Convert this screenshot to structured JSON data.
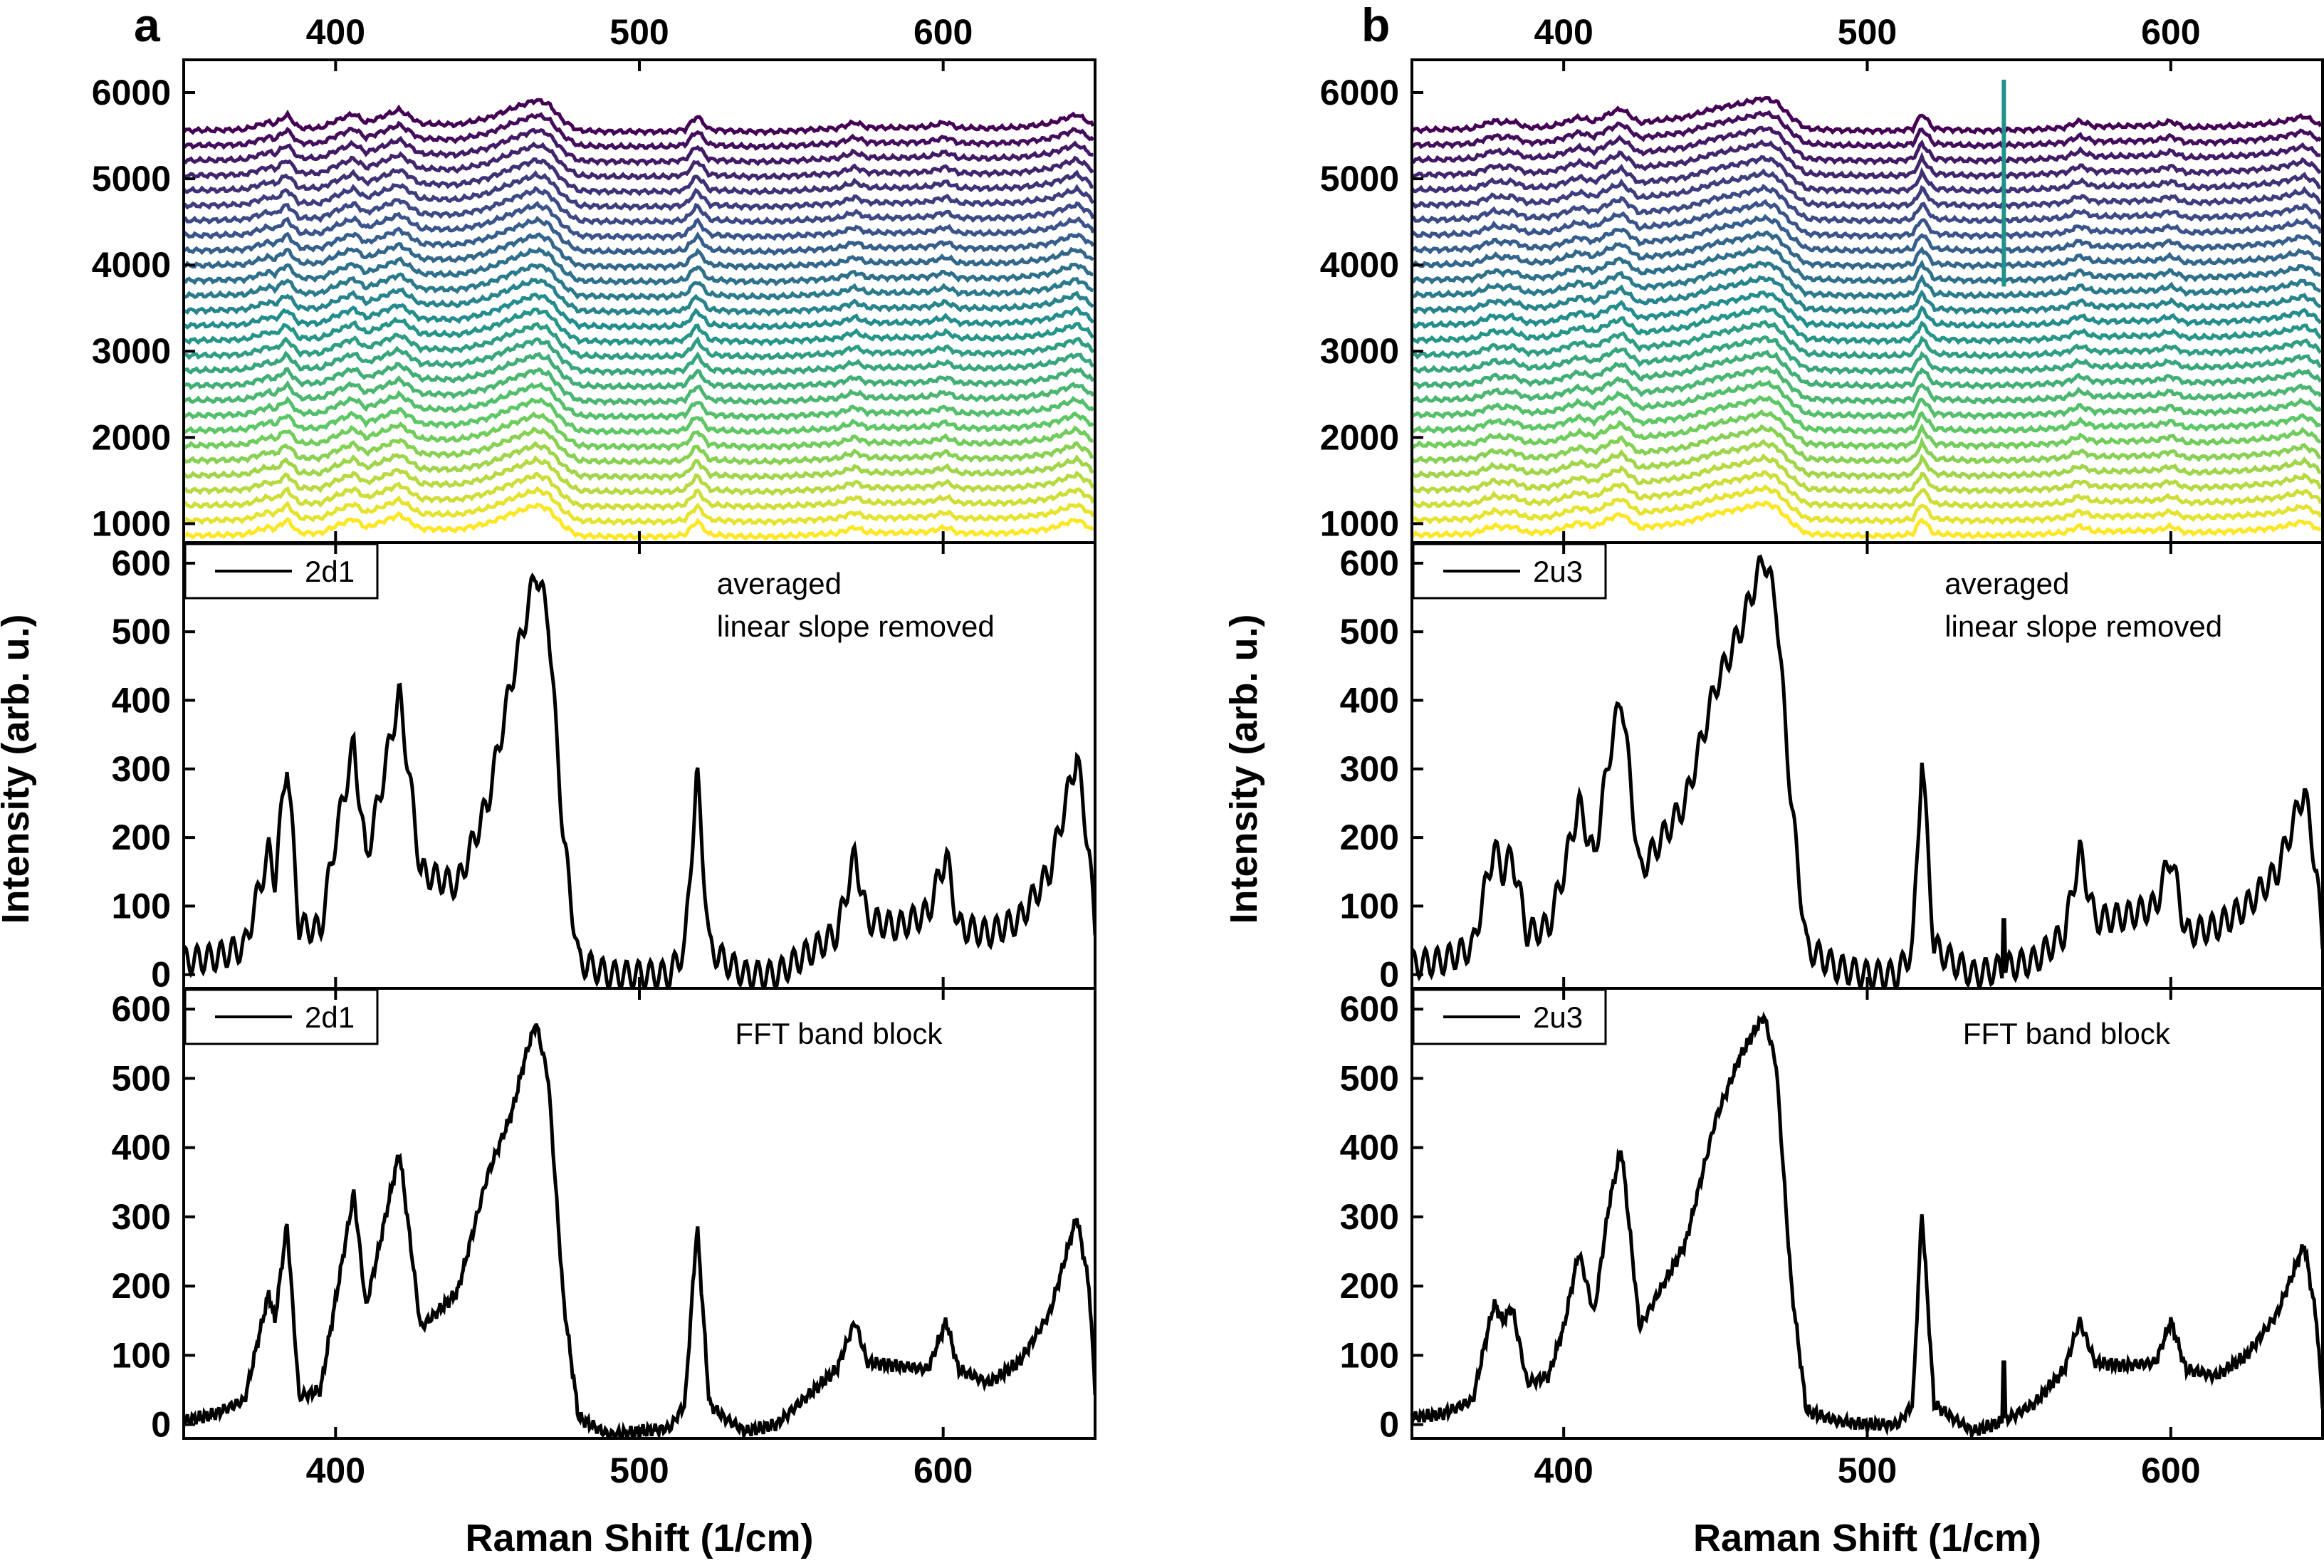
{
  "figure": {
    "panels": [
      {
        "letter": "a",
        "sample": "2d1"
      },
      {
        "letter": "b",
        "sample": "2u3"
      }
    ],
    "ylabel": "Intensity (arb. u.)",
    "xlabel": "Raman Shift (1/cm)",
    "annotation_mid_line1": "averaged",
    "annotation_mid_line2": "linear slope removed",
    "annotation_bottom": "FFT band block"
  },
  "chart_data": [
    {
      "type": "line",
      "panel": "a",
      "subplot": "top",
      "description_series": "stacked raw spectra (multiple acquisitions, viridis colormap)",
      "x_range": [
        350,
        650
      ],
      "ylim": [
        780,
        6380
      ],
      "x_ticks": [
        400,
        500,
        600
      ],
      "y_ticks": [
        1000,
        2000,
        3000,
        4000,
        5000,
        6000
      ],
      "n_spectra": 28,
      "offset_start": 850,
      "offset_step": 174,
      "colormap_start": "#fde725",
      "colormap_end": "#440154"
    },
    {
      "type": "line",
      "panel": "a",
      "subplot": "middle",
      "legend": "2d1",
      "annotation": [
        "averaged",
        "linear slope removed"
      ],
      "x_range": [
        350,
        650
      ],
      "ylim": [
        -20,
        630
      ],
      "x_ticks": [
        400,
        500,
        600
      ],
      "y_ticks": [
        0,
        100,
        200,
        300,
        400,
        500,
        600
      ],
      "x": [
        350,
        360,
        370,
        378,
        380,
        384,
        388,
        395,
        400,
        406,
        410,
        414,
        421,
        428,
        440,
        450,
        458,
        463,
        466,
        470,
        475,
        480,
        490,
        500,
        510,
        515,
        519,
        523,
        528,
        535,
        545,
        555,
        565,
        571,
        575,
        585,
        595,
        601,
        605,
        615,
        625,
        635,
        644,
        648,
        650
      ],
      "y": [
        20,
        25,
        40,
        180,
        140,
        315,
        70,
        65,
        200,
        335,
        170,
        250,
        410,
        150,
        130,
        250,
        430,
        530,
        590,
        520,
        200,
        20,
        0,
        0,
        0,
        40,
        295,
        40,
        20,
        0,
        0,
        30,
        60,
        175,
        80,
        70,
        90,
        175,
        70,
        60,
        80,
        150,
        320,
        180,
        60
      ],
      "oscillation_amplitude": 40
    },
    {
      "type": "line",
      "panel": "a",
      "subplot": "bottom",
      "legend": "2d1",
      "annotation": "FFT band block",
      "x_range": [
        350,
        650
      ],
      "ylim": [
        -20,
        630
      ],
      "x_ticks": [
        400,
        500,
        600
      ],
      "y_ticks": [
        0,
        100,
        200,
        300,
        400,
        500,
        600
      ],
      "x": [
        350,
        360,
        370,
        378,
        380,
        384,
        388,
        395,
        400,
        406,
        410,
        414,
        421,
        428,
        440,
        450,
        458,
        463,
        466,
        470,
        475,
        480,
        490,
        500,
        510,
        515,
        519,
        523,
        528,
        535,
        545,
        555,
        565,
        571,
        575,
        585,
        595,
        601,
        605,
        615,
        625,
        635,
        644,
        648,
        650
      ],
      "y": [
        5,
        15,
        35,
        190,
        150,
        290,
        40,
        50,
        180,
        335,
        170,
        250,
        395,
        140,
        190,
        360,
        450,
        540,
        580,
        500,
        180,
        10,
        -15,
        -10,
        -5,
        30,
        290,
        30,
        10,
        -10,
        0,
        40,
        80,
        150,
        90,
        85,
        80,
        150,
        80,
        60,
        90,
        160,
        300,
        200,
        50
      ]
    },
    {
      "type": "line",
      "panel": "b",
      "subplot": "top",
      "description_series": "stacked raw spectra (multiple acquisitions, viridis colormap)",
      "x_range": [
        350,
        650
      ],
      "ylim": [
        780,
        6380
      ],
      "x_ticks": [
        400,
        500,
        600
      ],
      "y_ticks": [
        1000,
        2000,
        3000,
        4000,
        5000,
        6000
      ],
      "n_spectra": 28,
      "offset_start": 860,
      "offset_step": 174,
      "spike": {
        "x": 545,
        "y0": 3750,
        "y1": 6150,
        "color": "#21918c"
      },
      "colormap_start": "#fde725",
      "colormap_end": "#440154"
    },
    {
      "type": "line",
      "panel": "b",
      "subplot": "middle",
      "legend": "2u3",
      "annotation": [
        "averaged",
        "linear slope removed"
      ],
      "x_range": [
        350,
        650
      ],
      "ylim": [
        -20,
        630
      ],
      "x_ticks": [
        400,
        500,
        600
      ],
      "y_ticks": [
        0,
        100,
        200,
        300,
        400,
        500,
        600
      ],
      "x": [
        350,
        360,
        370,
        377,
        380,
        383,
        388,
        395,
        400,
        405,
        410,
        415,
        419,
        425,
        440,
        450,
        458,
        463,
        466,
        470,
        475,
        480,
        490,
        500,
        510,
        515,
        518,
        522,
        528,
        535,
        545,
        555,
        565,
        570,
        575,
        585,
        595,
        600,
        605,
        615,
        625,
        635,
        644,
        648,
        650
      ],
      "y": [
        15,
        20,
        40,
        185,
        150,
        175,
        60,
        70,
        150,
        250,
        170,
        320,
        410,
        150,
        250,
        420,
        500,
        570,
        610,
        540,
        250,
        40,
        10,
        0,
        0,
        40,
        320,
        40,
        20,
        0,
        10,
        20,
        60,
        180,
        80,
        85,
        100,
        175,
        60,
        70,
        100,
        150,
        270,
        150,
        40
      ],
      "spike": {
        "x": 545,
        "y": 80
      },
      "oscillation_amplitude": 40
    },
    {
      "type": "line",
      "panel": "b",
      "subplot": "bottom",
      "legend": "2u3",
      "annotation": "FFT band block",
      "x_range": [
        350,
        650
      ],
      "ylim": [
        -20,
        630
      ],
      "x_ticks": [
        400,
        500,
        600
      ],
      "y_ticks": [
        0,
        100,
        200,
        300,
        400,
        500,
        600
      ],
      "x": [
        350,
        360,
        370,
        377,
        380,
        383,
        388,
        395,
        400,
        405,
        410,
        415,
        419,
        425,
        440,
        450,
        458,
        463,
        466,
        470,
        475,
        480,
        490,
        500,
        510,
        515,
        518,
        522,
        528,
        535,
        545,
        555,
        565,
        570,
        575,
        585,
        595,
        600,
        605,
        615,
        625,
        635,
        644,
        648,
        650
      ],
      "y": [
        10,
        15,
        35,
        175,
        150,
        170,
        60,
        70,
        140,
        250,
        160,
        320,
        400,
        140,
        260,
        440,
        530,
        570,
        590,
        520,
        200,
        20,
        5,
        0,
        0,
        30,
        310,
        30,
        10,
        -10,
        5,
        30,
        80,
        150,
        90,
        85,
        90,
        150,
        80,
        70,
        100,
        160,
        260,
        150,
        30
      ],
      "spike": {
        "x": 545,
        "y": 90
      }
    }
  ]
}
